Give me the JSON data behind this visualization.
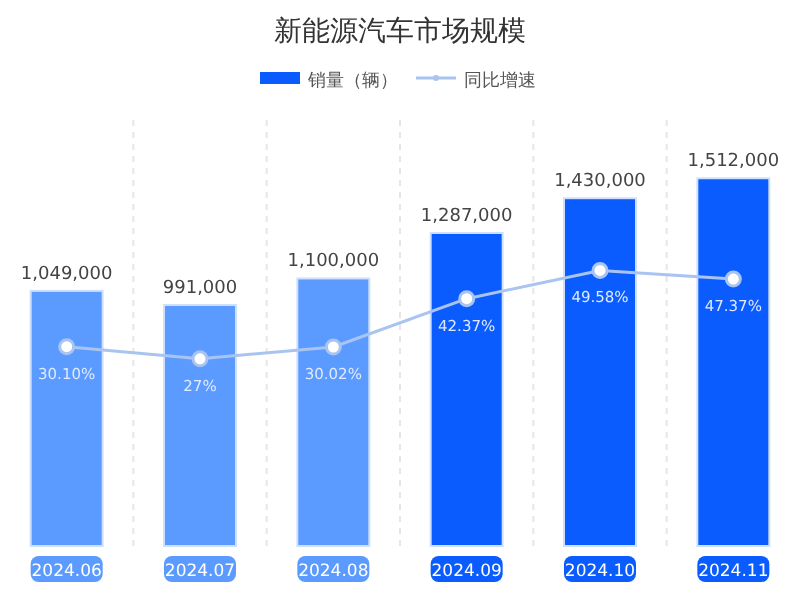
{
  "chart_data": {
    "type": "bar",
    "title": "新能源汽车市场规模",
    "categories": [
      "2024.06",
      "2024.07",
      "2024.08",
      "2024.09",
      "2024.10",
      "2024.11"
    ],
    "series": [
      {
        "name": "销量（辆）",
        "colors": [
          "#5b9bff",
          "#5b9bff",
          "#5b9bff",
          "#0a5cff",
          "#0a5cff",
          "#0a5cff"
        ],
        "color": "#0a5cff",
        "values": [
          1049000,
          991000,
          1100000,
          1287000,
          1430000,
          1512000
        ],
        "value_labels": [
          "1,049,000",
          "991,000",
          "1,100,000",
          "1,287,000",
          "1,430,000",
          "1,512,000"
        ]
      },
      {
        "name": "同比增速",
        "type": "line",
        "axis": "y2",
        "color": "#a9c4f0",
        "marker": "circle",
        "values": [
          30.1,
          27,
          30.02,
          42.37,
          49.58,
          47.37
        ],
        "value_labels": [
          "30.10%",
          "27%",
          "30.02%",
          "42.37%",
          "49.58%",
          "47.37%"
        ]
      }
    ],
    "grid": "x",
    "legend": "top",
    "tick_labels": "x"
  }
}
